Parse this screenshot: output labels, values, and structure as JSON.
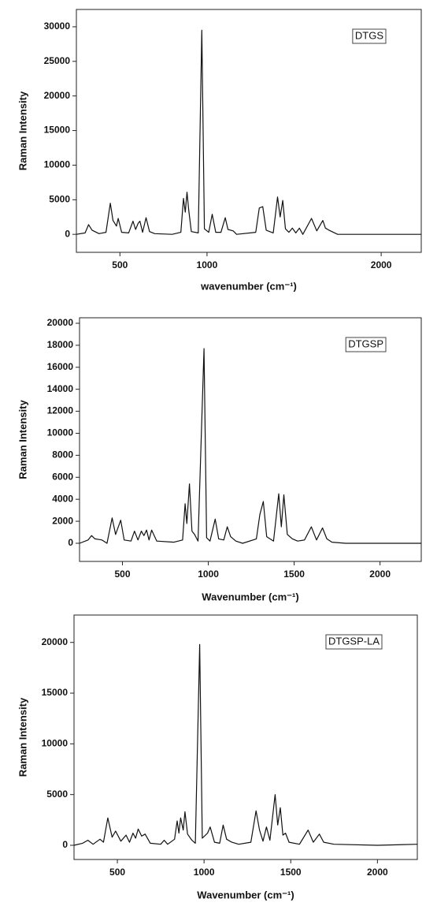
{
  "chart_data": [
    {
      "type": "line",
      "annotation": "DTGS",
      "x_label": "wavenumber (cm⁻¹)",
      "y_label": "Raman Intensity",
      "xlim": [
        250,
        2230
      ],
      "ylim": [
        -2600,
        32500
      ],
      "xticks": [
        500,
        1000,
        2000
      ],
      "yticks": [
        0,
        5000,
        10000,
        15000,
        20000,
        25000,
        30000
      ],
      "color": "#111111",
      "x": [
        250,
        300,
        320,
        340,
        380,
        420,
        445,
        460,
        480,
        490,
        510,
        550,
        575,
        590,
        605,
        615,
        630,
        650,
        670,
        700,
        800,
        850,
        865,
        875,
        885,
        895,
        910,
        950,
        970,
        985,
        1010,
        1030,
        1050,
        1080,
        1105,
        1120,
        1150,
        1170,
        1280,
        1300,
        1320,
        1340,
        1380,
        1405,
        1420,
        1435,
        1450,
        1470,
        1490,
        1510,
        1530,
        1550,
        1600,
        1630,
        1665,
        1680,
        1700,
        1750,
        1800,
        2000,
        2230
      ],
      "values": [
        0,
        200,
        1400,
        600,
        100,
        300,
        4500,
        2000,
        1200,
        2300,
        300,
        200,
        1900,
        700,
        1600,
        1900,
        300,
        2400,
        400,
        100,
        0,
        300,
        5200,
        3200,
        6100,
        3500,
        400,
        200,
        29500,
        800,
        300,
        2900,
        300,
        300,
        2400,
        700,
        500,
        0,
        300,
        3800,
        4000,
        600,
        200,
        5400,
        2500,
        4900,
        800,
        300,
        900,
        200,
        900,
        0,
        2300,
        500,
        2000,
        900,
        600,
        0,
        0,
        0,
        0
      ]
    },
    {
      "type": "line",
      "annotation": "DTGSP",
      "x_label": "Wavenumber (cm⁻¹)",
      "y_label": "Raman Intensity",
      "xlim": [
        250,
        2240
      ],
      "ylim": [
        -1650,
        20500
      ],
      "xticks": [
        500,
        1000,
        1500,
        2000
      ],
      "yticks": [
        0,
        2000,
        4000,
        6000,
        8000,
        10000,
        12000,
        14000,
        16000,
        18000,
        20000
      ],
      "color": "#111111",
      "x": [
        250,
        300,
        320,
        340,
        380,
        410,
        440,
        460,
        490,
        510,
        550,
        570,
        590,
        610,
        625,
        640,
        655,
        670,
        700,
        800,
        850,
        865,
        875,
        890,
        905,
        920,
        940,
        975,
        990,
        1010,
        1040,
        1060,
        1090,
        1110,
        1130,
        1160,
        1200,
        1280,
        1300,
        1320,
        1340,
        1380,
        1410,
        1425,
        1440,
        1460,
        1490,
        1520,
        1560,
        1600,
        1630,
        1665,
        1690,
        1720,
        1800,
        2000,
        2240
      ],
      "values": [
        0,
        300,
        700,
        400,
        300,
        0,
        2300,
        800,
        2100,
        300,
        200,
        1100,
        300,
        1100,
        700,
        1200,
        300,
        1200,
        200,
        100,
        300,
        3600,
        1800,
        5400,
        1100,
        800,
        200,
        17700,
        500,
        200,
        2200,
        400,
        300,
        1500,
        600,
        200,
        0,
        400,
        2600,
        3800,
        600,
        200,
        4500,
        1500,
        4400,
        800,
        400,
        200,
        300,
        1500,
        300,
        1400,
        400,
        100,
        0,
        0,
        0
      ]
    },
    {
      "type": "line",
      "annotation": "DTGSP-LA",
      "x_label": "Wavenumber (cm⁻¹)",
      "y_label": "Raman Intensity",
      "xlim": [
        250,
        2230
      ],
      "ylim": [
        -1400,
        22700
      ],
      "xticks": [
        500,
        1000,
        1500,
        2000
      ],
      "yticks": [
        0,
        5000,
        10000,
        15000,
        20000
      ],
      "color": "#111111",
      "x": [
        250,
        300,
        330,
        360,
        400,
        420,
        445,
        470,
        490,
        520,
        550,
        570,
        590,
        605,
        620,
        640,
        660,
        690,
        750,
        770,
        790,
        830,
        845,
        855,
        865,
        880,
        890,
        905,
        930,
        950,
        975,
        990,
        1020,
        1035,
        1060,
        1090,
        1110,
        1130,
        1160,
        1200,
        1270,
        1300,
        1320,
        1340,
        1360,
        1380,
        1410,
        1425,
        1440,
        1455,
        1470,
        1490,
        1550,
        1600,
        1630,
        1665,
        1690,
        1750,
        2000,
        2230
      ],
      "values": [
        0,
        200,
        500,
        100,
        600,
        300,
        2700,
        800,
        1400,
        400,
        1000,
        300,
        1200,
        700,
        1600,
        900,
        1100,
        200,
        100,
        500,
        100,
        600,
        2400,
        1200,
        2700,
        1500,
        3300,
        1100,
        500,
        200,
        19800,
        700,
        1200,
        1800,
        300,
        200,
        2000,
        600,
        300,
        100,
        300,
        3400,
        1500,
        400,
        1800,
        500,
        5000,
        2000,
        3700,
        1000,
        1200,
        300,
        100,
        1500,
        300,
        1100,
        300,
        100,
        0,
        100
      ]
    }
  ]
}
